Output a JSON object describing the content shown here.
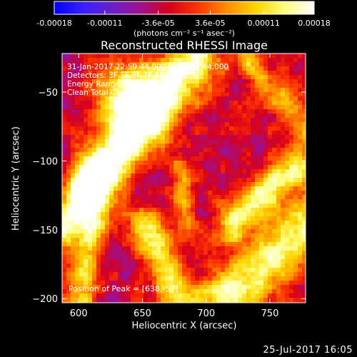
{
  "chart_data": {
    "type": "heatmap",
    "title": "Reconstructed RHESSI Image",
    "xlabel": "Heliocentric X (arcsec)",
    "ylabel": "Heliocentric Y (arcsec)",
    "xlim": [
      587,
      778
    ],
    "ylim": [
      -203,
      -22
    ],
    "xticks": [
      600,
      650,
      700,
      750
    ],
    "yticks": [
      -50,
      -100,
      -150,
      -200
    ],
    "colorbar": {
      "min": -0.00018,
      "max": 0.00018,
      "ticks": [
        -0.00018,
        -0.00011,
        -3.6e-05,
        3.6e-05,
        0.00011,
        0.00018
      ],
      "tick_labels": [
        "-0.00018",
        "-0.00011",
        "-3.6e-05",
        "3.6e-05",
        "0.00011",
        "0.00018"
      ],
      "unit_label": "(photons cm⁻² s⁻¹ asec⁻²)",
      "palette": [
        "#0000ff",
        "#3a1fff",
        "#6a20c8",
        "#a0108f",
        "#d80018",
        "#ff3600",
        "#ff9000",
        "#ffd400",
        "#ffff80",
        "#ffffff"
      ]
    },
    "annotations": [
      "31-Jan-2017 22:59:44.000 to 23:09:44.000",
      "Detectors: 3F 5F 6F 7F 8F 9F, Att 0",
      "Energy Range: 12.0 - 25.0 keV",
      "Clean     Total Counts: 1.22E+04"
    ],
    "peak_label": "Position of Peak = [638,-57]",
    "peak_position": [
      638,
      -57
    ],
    "grid": "off"
  },
  "footer": {
    "date": "25-Jul-2017 16:05"
  }
}
